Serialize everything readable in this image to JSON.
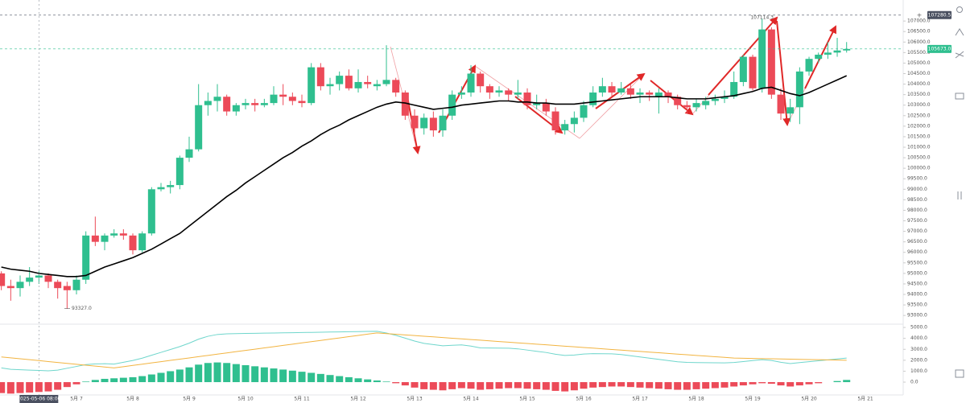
{
  "chart_data": [
    {
      "type": "candlestick",
      "categories": [
        null,
        null,
        null,
        null,
        null,
        null,
        null,
        null,
        "5月 7",
        null,
        null,
        null,
        null,
        null,
        "5月 8",
        null,
        null,
        null,
        null,
        null,
        "5月 9",
        null,
        null,
        null,
        null,
        null,
        "5月 10",
        null,
        null,
        null,
        null,
        null,
        "5月 11",
        null,
        null,
        null,
        null,
        null,
        "5月 12",
        null,
        null,
        null,
        null,
        null,
        "5月 13",
        null,
        null,
        null,
        null,
        null,
        "5月 14",
        null,
        null,
        null,
        null,
        null,
        "5月 15",
        null,
        null,
        null,
        null,
        null,
        "5月 16",
        null,
        null,
        null,
        null,
        null,
        "5月 17",
        null,
        null,
        null,
        null,
        null,
        "5月 18",
        null,
        null,
        null,
        null,
        null,
        "5月 19",
        null,
        null,
        null,
        null,
        null,
        "5月 20",
        null,
        null,
        null,
        null,
        null,
        "5月 21"
      ],
      "open": [
        95000,
        94400,
        94300,
        94600,
        94800,
        94900,
        94600,
        94400,
        94200,
        94700,
        96800,
        96500,
        96800,
        96900,
        96800,
        96100,
        96900,
        99000,
        99100,
        99200,
        100500,
        100900,
        103000,
        103200,
        103400,
        102700,
        103000,
        103100,
        103000,
        103100,
        103500,
        103400,
        103200,
        103100,
        104800,
        103900,
        104000,
        104400,
        103800,
        104100,
        103900,
        104000,
        104200,
        103600,
        102500,
        101900,
        102400,
        101800,
        102500,
        103500,
        103600,
        104500,
        103900,
        103600,
        103700,
        103500,
        103600,
        103000,
        103100,
        102700,
        101800,
        102100,
        102400,
        103000,
        103600,
        103900,
        103600,
        103800,
        103500,
        103600,
        103400,
        103600,
        103400,
        103000,
        102900,
        103000,
        103200,
        103300,
        103400,
        104100,
        105300,
        103800,
        106600,
        103500,
        102600,
        102900,
        104600,
        105200,
        105400,
        105500,
        105600,
        null,
        null
      ],
      "high": [
        95100,
        94700,
        94900,
        95300,
        95100,
        95000,
        94700,
        94600,
        94900,
        97000,
        97700,
        96900,
        97100,
        97100,
        96900,
        97000,
        99100,
        99300,
        99400,
        100600,
        101500,
        104000,
        103600,
        104000,
        103500,
        103100,
        103300,
        103300,
        103300,
        103900,
        104000,
        103600,
        103500,
        105000,
        105000,
        104300,
        104600,
        104700,
        104700,
        104400,
        104200,
        105850,
        104300,
        103700,
        102800,
        102600,
        102700,
        102800,
        103700,
        103900,
        104900,
        104600,
        104000,
        103900,
        103800,
        104200,
        103800,
        103500,
        103300,
        102900,
        102300,
        102700,
        103200,
        103900,
        104300,
        104100,
        104100,
        104000,
        103800,
        103700,
        103800,
        103700,
        103500,
        103200,
        103300,
        103400,
        103500,
        103700,
        104600,
        105400,
        105400,
        107114.3,
        106700,
        103800,
        103300,
        104800,
        105300,
        105500,
        106000,
        106200,
        106000,
        null,
        null
      ],
      "low": [
        94200,
        93700,
        93900,
        94400,
        94500,
        94300,
        93800,
        93327,
        94000,
        94500,
        96300,
        96100,
        96700,
        96600,
        95900,
        96000,
        96800,
        98900,
        98800,
        99000,
        100300,
        100800,
        102500,
        102700,
        102500,
        102500,
        102800,
        102700,
        102900,
        103000,
        103000,
        103000,
        102900,
        103000,
        103700,
        103500,
        103700,
        103700,
        103600,
        103800,
        103700,
        103900,
        103400,
        102300,
        101300,
        101600,
        101500,
        101500,
        102300,
        103300,
        103400,
        103600,
        103300,
        103400,
        103200,
        103300,
        102800,
        102800,
        102500,
        101600,
        101600,
        101700,
        102200,
        102900,
        103400,
        103400,
        103500,
        103300,
        103100,
        103200,
        102600,
        103100,
        102800,
        102600,
        102700,
        102800,
        103000,
        103100,
        103300,
        103900,
        103700,
        103600,
        103300,
        102300,
        102200,
        102100,
        104400,
        105000,
        105200,
        105300,
        105500,
        null,
        null
      ],
      "close": [
        94400,
        94300,
        94600,
        94800,
        94900,
        94600,
        94300,
        94200,
        94700,
        96800,
        96500,
        96800,
        96900,
        96800,
        96100,
        96900,
        99000,
        99100,
        99200,
        100500,
        100900,
        103000,
        103200,
        103400,
        102700,
        103000,
        103100,
        103000,
        103100,
        103500,
        103400,
        103200,
        103100,
        104800,
        103900,
        104000,
        104400,
        103800,
        104100,
        104000,
        104000,
        104200,
        103600,
        102500,
        101900,
        102400,
        101800,
        102500,
        103500,
        103600,
        104500,
        103900,
        103600,
        103700,
        103500,
        103600,
        103000,
        103100,
        102700,
        101800,
        102100,
        102400,
        103000,
        103600,
        103900,
        103600,
        103800,
        103500,
        103600,
        103500,
        103600,
        103400,
        103000,
        102900,
        103100,
        103200,
        103300,
        103400,
        104100,
        105300,
        103800,
        106600,
        103500,
        102600,
        102900,
        104600,
        105200,
        105400,
        105500,
        105600,
        105673,
        null,
        null
      ],
      "up_color": "#2fbf8f",
      "down_color": "#ec4a58",
      "ma": {
        "color": "#000000",
        "values": [
          95300,
          95200,
          95150,
          95100,
          95000,
          94950,
          94900,
          94850,
          94850,
          94900,
          95100,
          95300,
          95450,
          95600,
          95750,
          95950,
          96150,
          96400,
          96650,
          96900,
          97250,
          97600,
          97950,
          98300,
          98650,
          98950,
          99300,
          99600,
          99900,
          100200,
          100500,
          100750,
          101050,
          101300,
          101600,
          101850,
          102050,
          102300,
          102500,
          102700,
          102900,
          103050,
          103150,
          103100,
          103000,
          102900,
          102800,
          102850,
          102900,
          103000,
          103050,
          103100,
          103150,
          103200,
          103200,
          103150,
          103150,
          103100,
          103100,
          103050,
          103050,
          103050,
          103100,
          103150,
          103200,
          103250,
          103300,
          103350,
          103400,
          103400,
          103400,
          103400,
          103350,
          103300,
          103300,
          103300,
          103350,
          103400,
          103450,
          103550,
          103650,
          103800,
          103850,
          103700,
          103550,
          103450,
          103600,
          103800,
          104000,
          104200,
          104400,
          null,
          null
        ]
      },
      "ylim": [
        92700,
        108000
      ],
      "yticks": [
        {
          "value": 93000,
          "label": "93000.0"
        },
        {
          "value": 93500,
          "label": "93500.0"
        },
        {
          "value": 94000,
          "label": "94000.0"
        },
        {
          "value": 94500,
          "label": "94500.0"
        },
        {
          "value": 95000,
          "label": "95000.0"
        },
        {
          "value": 95500,
          "label": "95500.0"
        },
        {
          "value": 96000,
          "label": "96000.0"
        },
        {
          "value": 96500,
          "label": "96500.0"
        },
        {
          "value": 97000,
          "label": "97000.0"
        },
        {
          "value": 97500,
          "label": "97500.0"
        },
        {
          "value": 98000,
          "label": "98000.0"
        },
        {
          "value": 98500,
          "label": "98500.0"
        },
        {
          "value": 99000,
          "label": "99000.0"
        },
        {
          "value": 99500,
          "label": "99500.0"
        },
        {
          "value": 100000,
          "label": "100000.0"
        },
        {
          "value": 100500,
          "label": "100500.0"
        },
        {
          "value": 101000,
          "label": "101000.0"
        },
        {
          "value": 101500,
          "label": "101500.0"
        },
        {
          "value": 102000,
          "label": "102000.0"
        },
        {
          "value": 102500,
          "label": "102500.0"
        },
        {
          "value": 103000,
          "label": "103000.0"
        },
        {
          "value": 103500,
          "label": "103500.0"
        },
        {
          "value": 104000,
          "label": "104000.0"
        },
        {
          "value": 104500,
          "label": "104500.0"
        },
        {
          "value": 105000,
          "label": "105000.0"
        },
        {
          "value": 105500,
          "label": "105500.0"
        },
        {
          "value": 106000,
          "label": "106000.0"
        },
        {
          "value": 106500,
          "label": "106500.0"
        },
        {
          "value": 107000,
          "label": "107000.0"
        }
      ],
      "grid": false,
      "price_lines": [
        {
          "value": 107280.5,
          "color": "#4a5060"
        },
        {
          "value": 105673,
          "label": "105673.0",
          "color": "#2fbf8f"
        }
      ],
      "annotations": [
        {
          "value": 107114.3,
          "label": "107114.3"
        },
        {
          "value": 93327,
          "label": "93327.0"
        }
      ],
      "crosshair": {
        "label": "2025-05-06 08:00"
      }
    },
    {
      "type": "macd",
      "histogram": {
        "up_color": "#2fbf8f",
        "down_color": "#ec4a58",
        "values": [
          -1000,
          -1050,
          -1000,
          -950,
          -900,
          -850,
          -700,
          -450,
          -200,
          50,
          200,
          300,
          350,
          400,
          450,
          550,
          700,
          850,
          1000,
          1150,
          1350,
          1600,
          1750,
          1800,
          1750,
          1650,
          1550,
          1450,
          1350,
          1250,
          1150,
          1050,
          950,
          850,
          750,
          650,
          550,
          450,
          350,
          250,
          150,
          50,
          -100,
          -300,
          -500,
          -650,
          -700,
          -750,
          -650,
          -550,
          -600,
          -700,
          -650,
          -600,
          -550,
          -550,
          -600,
          -650,
          -700,
          -800,
          -850,
          -750,
          -600,
          -500,
          -450,
          -400,
          -400,
          -450,
          -500,
          -550,
          -600,
          -650,
          -700,
          -700,
          -650,
          -600,
          -550,
          -500,
          -400,
          -300,
          -200,
          -100,
          -150,
          -300,
          -400,
          -300,
          -200,
          -100,
          0,
          100,
          200,
          null,
          null
        ]
      },
      "series": [
        {
          "color": "#6fd6cc",
          "values": [
            1300,
            1167,
            1133,
            1100,
            1067,
            1033,
            1100,
            1267,
            1433,
            1600,
            1667,
            1683,
            1650,
            1814,
            1979,
            2193,
            2457,
            2721,
            2986,
            3250,
            3564,
            3929,
            4193,
            4357,
            4421,
            4436,
            4450,
            4464,
            4479,
            4493,
            4507,
            4521,
            4536,
            4550,
            4564,
            4579,
            4593,
            4607,
            4621,
            4636,
            4650,
            4490,
            4279,
            4019,
            3758,
            3547,
            3437,
            3326,
            3366,
            3405,
            3295,
            3134,
            3124,
            3113,
            3103,
            3042,
            2932,
            2821,
            2711,
            2550,
            2440,
            2479,
            2568,
            2608,
            2597,
            2587,
            2526,
            2416,
            2305,
            2195,
            2084,
            1974,
            1863,
            1803,
            1792,
            1782,
            1771,
            1761,
            1800,
            1883,
            1967,
            2050,
            1983,
            1817,
            1700,
            1783,
            1867,
            1950,
            2033,
            2117,
            2200,
            null,
            null
          ]
        },
        {
          "color": "#f2b441",
          "values": [
            2300,
            2217,
            2133,
            2050,
            1967,
            1883,
            1800,
            1717,
            1633,
            1550,
            1467,
            1383,
            1300,
            1414,
            1529,
            1643,
            1757,
            1871,
            1986,
            2100,
            2214,
            2329,
            2443,
            2557,
            2671,
            2786,
            2900,
            3014,
            3129,
            3243,
            3357,
            3471,
            3586,
            3700,
            3814,
            3929,
            4043,
            4157,
            4271,
            4386,
            4500,
            4440,
            4379,
            4319,
            4258,
            4197,
            4137,
            4076,
            4016,
            3955,
            3895,
            3834,
            3774,
            3713,
            3653,
            3592,
            3532,
            3471,
            3411,
            3350,
            3290,
            3229,
            3168,
            3108,
            3047,
            2987,
            2926,
            2866,
            2805,
            2745,
            2684,
            2624,
            2563,
            2503,
            2442,
            2382,
            2321,
            2261,
            2200,
            2183,
            2167,
            2150,
            2133,
            2117,
            2100,
            2083,
            2067,
            2050,
            2033,
            2017,
            2000,
            null,
            null
          ]
        }
      ],
      "ylim": [
        -1100,
        5300
      ],
      "yticks": [
        {
          "value": 0,
          "label": "0.0"
        },
        {
          "value": 1000,
          "label": "1000.0"
        },
        {
          "value": 2000,
          "label": "2000.0"
        },
        {
          "value": 3000,
          "label": "3000.0"
        },
        {
          "value": 4000,
          "label": "4000.0"
        },
        {
          "value": 5000,
          "label": "5000.0"
        }
      ]
    }
  ]
}
